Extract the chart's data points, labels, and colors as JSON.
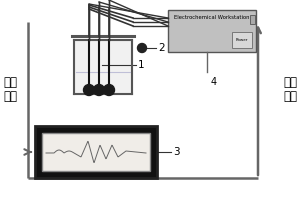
{
  "workstation_label": "Electrochemical Workstation",
  "power_label": "Power",
  "label_1": "1",
  "label_2": "2",
  "label_3": "3",
  "label_4": "4",
  "left_text_lines": [
    "信号",
    "输出"
  ],
  "right_text_lines": [
    "仪器",
    "控制"
  ],
  "line_color": "#666666",
  "wire_color": "#333333",
  "electrode_color": "#111111",
  "beaker_fill": "#e8e8e8",
  "ws_fill": "#c0c0c0",
  "monitor_outer": "#111111",
  "monitor_screen": "#f0ede8",
  "signal_color": "#555555",
  "figure_width": 3.0,
  "figure_height": 2.0,
  "dpi": 100
}
